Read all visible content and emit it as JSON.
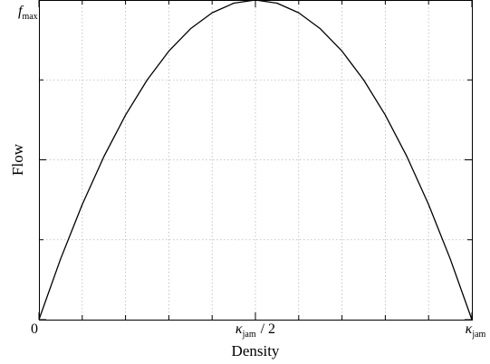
{
  "chart_data": {
    "type": "line",
    "xlabel": "Density",
    "ylabel": "Flow",
    "xlim": [
      0,
      1
    ],
    "ylim": [
      0,
      1
    ],
    "grid": true,
    "x_ticks": {
      "major": [
        0,
        0.5,
        1
      ],
      "minor": [
        0.1,
        0.2,
        0.3,
        0.4,
        0.6,
        0.7,
        0.8,
        0.9
      ],
      "labels": [
        {
          "value": 0,
          "text": "0"
        },
        {
          "value": 0.5,
          "main": "κ",
          "sub": "jam",
          "suffix": "/ 2"
        },
        {
          "value": 1,
          "main": "κ",
          "sub": "jam",
          "suffix": ""
        }
      ]
    },
    "y_ticks": {
      "major": [
        0,
        0.5,
        1
      ],
      "minor": [
        0.25,
        0.75
      ],
      "labels": [
        {
          "value": 1,
          "main": "f",
          "sub": "max"
        }
      ]
    },
    "series": [
      {
        "values": [
          [
            0,
            0
          ],
          [
            0.05,
            0.19
          ],
          [
            0.1,
            0.36
          ],
          [
            0.15,
            0.51
          ],
          [
            0.2,
            0.64
          ],
          [
            0.25,
            0.75
          ],
          [
            0.3,
            0.84
          ],
          [
            0.35,
            0.91
          ],
          [
            0.4,
            0.96
          ],
          [
            0.45,
            0.99
          ],
          [
            0.5,
            1.0
          ],
          [
            0.55,
            0.99
          ],
          [
            0.6,
            0.96
          ],
          [
            0.65,
            0.91
          ],
          [
            0.7,
            0.84
          ],
          [
            0.75,
            0.75
          ],
          [
            0.8,
            0.64
          ],
          [
            0.85,
            0.51
          ],
          [
            0.9,
            0.36
          ],
          [
            0.95,
            0.19
          ],
          [
            1,
            0
          ]
        ],
        "color": "#000000"
      }
    ]
  }
}
